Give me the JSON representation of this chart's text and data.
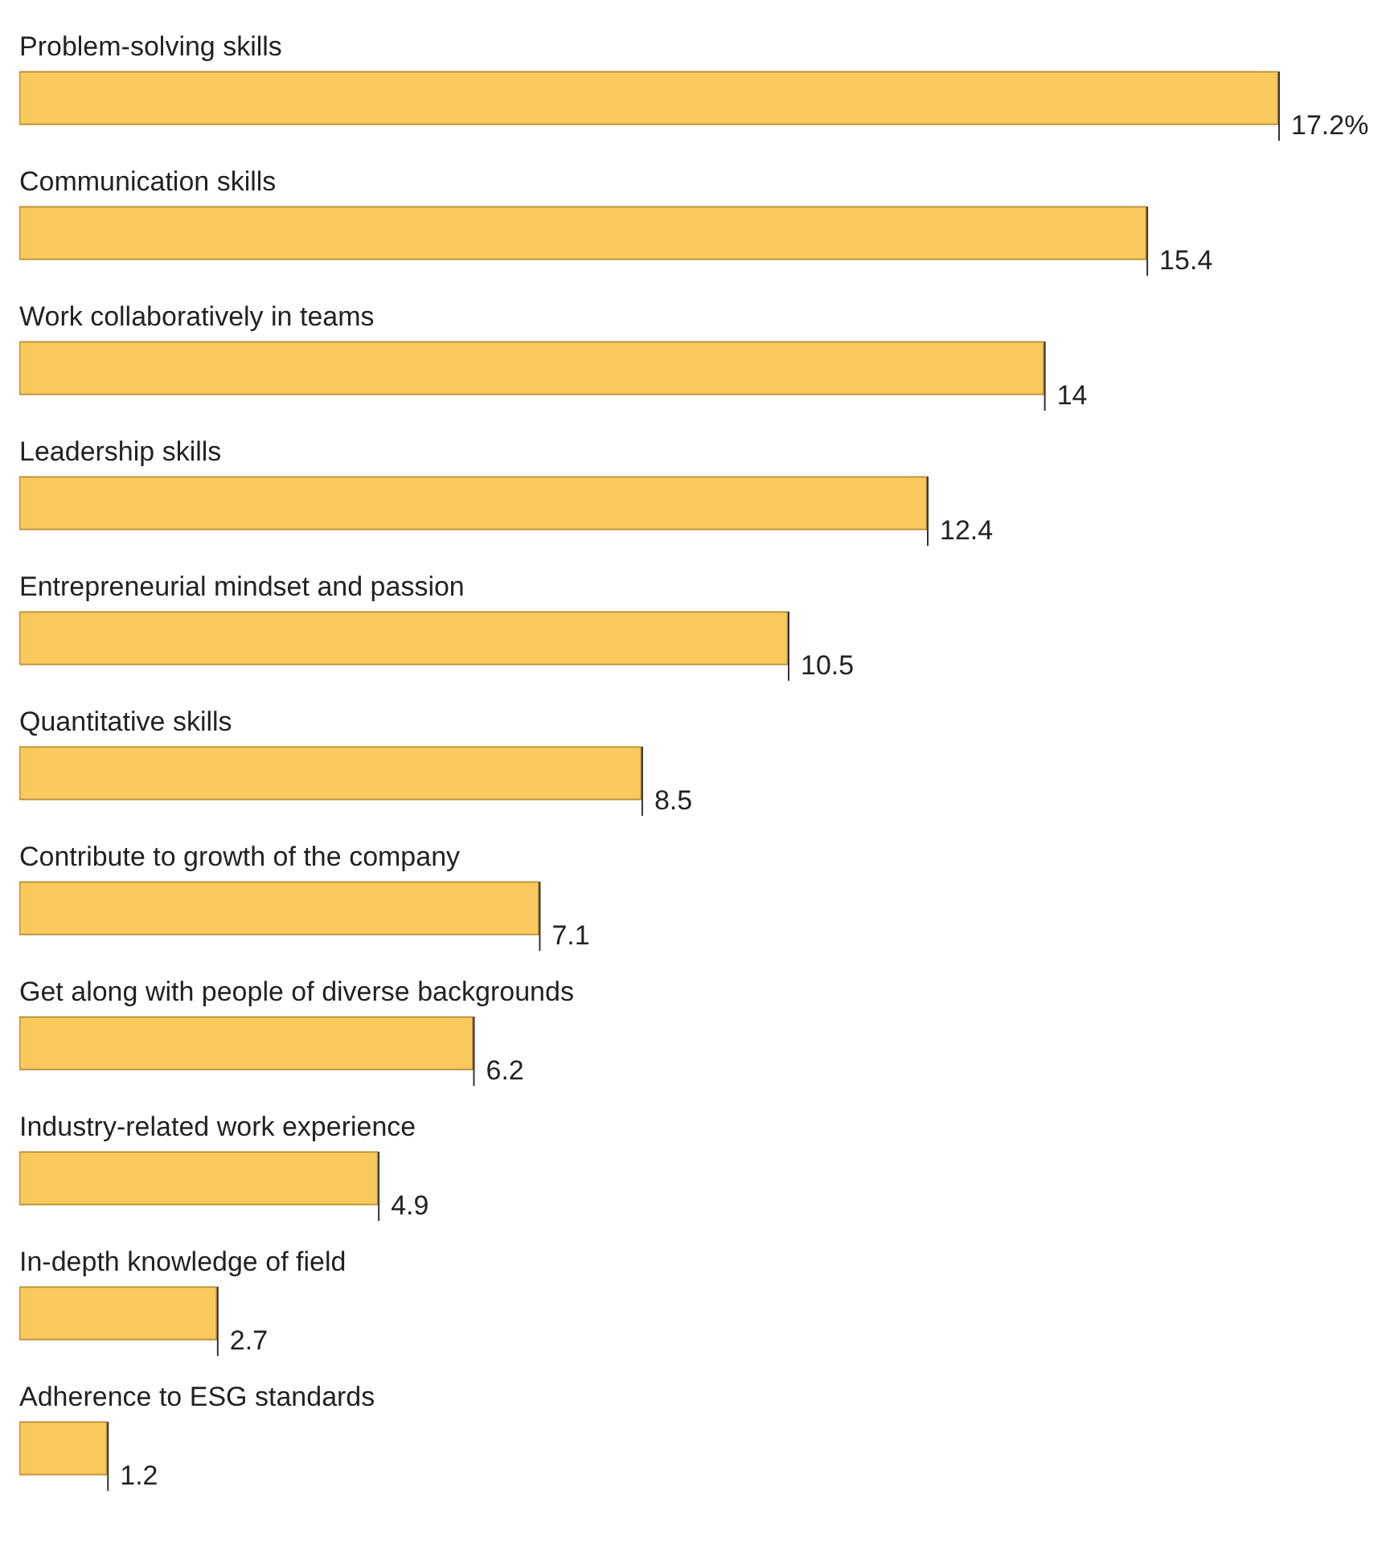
{
  "chart_data": {
    "type": "bar",
    "orientation": "horizontal",
    "categories": [
      "Problem-solving skills",
      "Communication skills",
      "Work collaboratively in teams",
      "Leadership skills",
      "Entrepreneurial mindset and passion",
      "Quantitative skills",
      "Contribute to growth of the company",
      "Get along with people of diverse backgrounds",
      "Industry-related work experience",
      "In-depth knowledge of field",
      "Adherence to ESG standards"
    ],
    "values": [
      17.2,
      15.4,
      14,
      12.4,
      10.5,
      8.5,
      7.1,
      6.2,
      4.9,
      2.7,
      1.2
    ],
    "value_labels": [
      "17.2%",
      "15.4",
      "14",
      "12.4",
      "10.5",
      "8.5",
      "7.1",
      "6.2",
      "4.9",
      "2.7",
      "1.2"
    ],
    "color": "#fac95e"
  }
}
